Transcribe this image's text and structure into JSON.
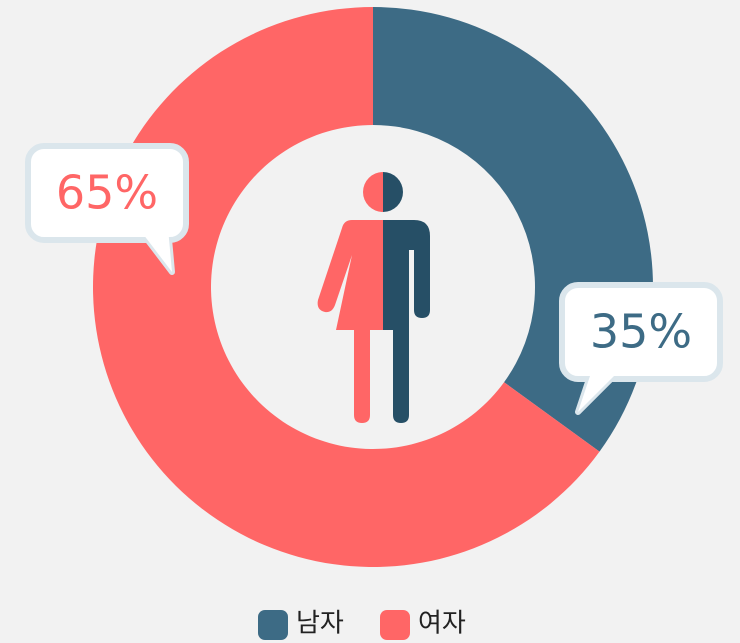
{
  "chart_data": {
    "type": "donut",
    "categories": [
      "남자",
      "여자"
    ],
    "values": [
      35,
      65
    ],
    "value_labels": [
      "35%",
      "65%"
    ],
    "colors": [
      "#3d6b85",
      "#ff6666"
    ],
    "legend": "bottom"
  }
}
